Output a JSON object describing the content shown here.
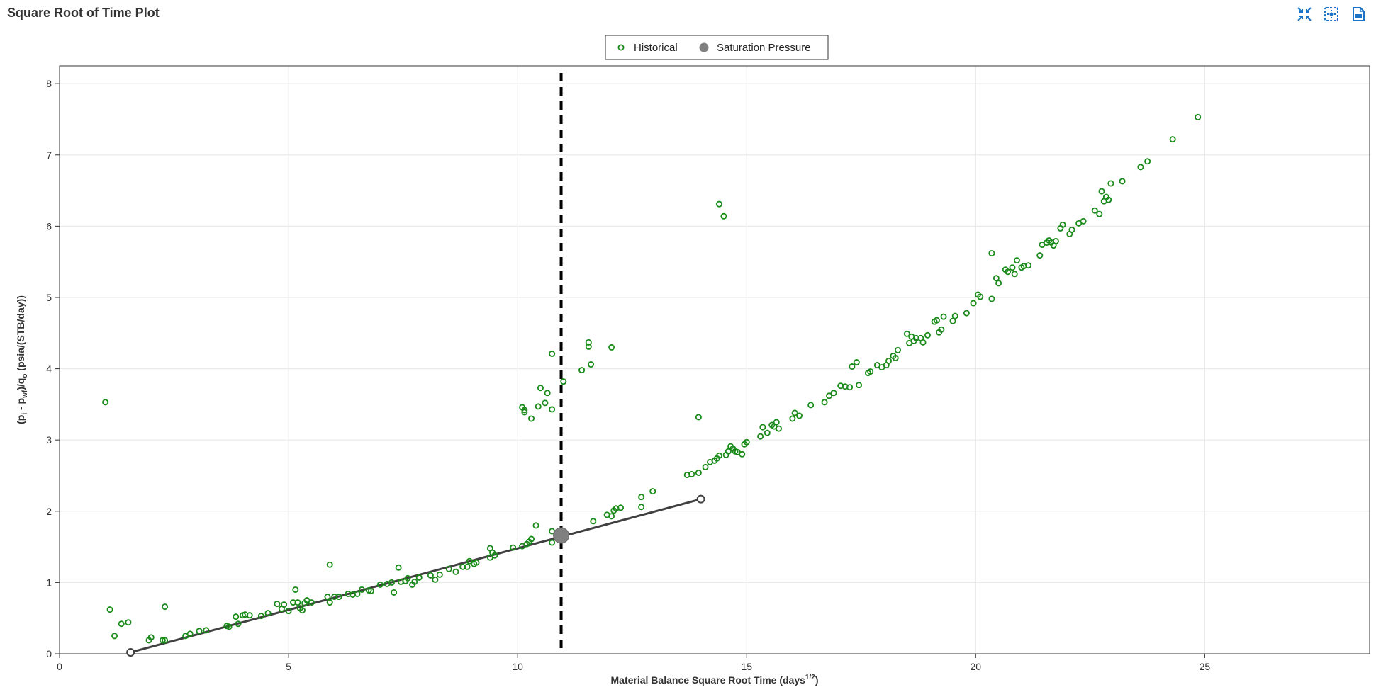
{
  "header": {
    "title": "Square Root of Time Plot",
    "icons": [
      "collapse-icon",
      "reset-zoom-icon",
      "export-icon"
    ]
  },
  "colors": {
    "historical": "#1a8a1a",
    "saturation": "#808080",
    "fit_line": "#404040",
    "dashed_line": "#000000",
    "grid": "#e6e6e6"
  },
  "chart_data": {
    "type": "scatter",
    "title": "Square Root of Time Plot",
    "xlabel_parts": [
      "Material Balance Square Root Time (days",
      "1/2",
      ")"
    ],
    "ylabel_parts": [
      "(p",
      "i",
      " - p",
      "wf",
      ")/q",
      "o",
      " (psia/(STB/day))"
    ],
    "xlim": [
      0,
      28.6
    ],
    "ylim": [
      0,
      8.25
    ],
    "xticks": [
      0,
      5,
      10,
      15,
      20,
      25
    ],
    "yticks": [
      0,
      1,
      2,
      3,
      4,
      5,
      6,
      7,
      8
    ],
    "grid": true,
    "legend_position": "top-center",
    "legend": [
      "Historical",
      "Saturation Pressure"
    ],
    "series": [
      {
        "name": "Historical",
        "marker": "open-circle",
        "points": [
          [
            1.0,
            3.53
          ],
          [
            1.1,
            0.62
          ],
          [
            1.2,
            0.25
          ],
          [
            1.35,
            0.42
          ],
          [
            1.5,
            0.44
          ],
          [
            1.95,
            0.19
          ],
          [
            2.0,
            0.23
          ],
          [
            2.25,
            0.19
          ],
          [
            2.3,
            0.66
          ],
          [
            2.3,
            0.19
          ],
          [
            2.75,
            0.25
          ],
          [
            2.85,
            0.28
          ],
          [
            3.05,
            0.32
          ],
          [
            3.2,
            0.33
          ],
          [
            3.65,
            0.39
          ],
          [
            3.7,
            0.38
          ],
          [
            3.85,
            0.52
          ],
          [
            3.9,
            0.42
          ],
          [
            4.0,
            0.54
          ],
          [
            4.05,
            0.55
          ],
          [
            4.15,
            0.54
          ],
          [
            4.4,
            0.53
          ],
          [
            4.55,
            0.57
          ],
          [
            4.75,
            0.7
          ],
          [
            4.85,
            0.63
          ],
          [
            4.9,
            0.69
          ],
          [
            5.0,
            0.6
          ],
          [
            5.1,
            0.72
          ],
          [
            5.15,
            0.9
          ],
          [
            5.2,
            0.72
          ],
          [
            5.25,
            0.64
          ],
          [
            5.3,
            0.61
          ],
          [
            5.35,
            0.71
          ],
          [
            5.4,
            0.75
          ],
          [
            5.5,
            0.72
          ],
          [
            5.85,
            0.8
          ],
          [
            5.9,
            1.25
          ],
          [
            5.9,
            0.72
          ],
          [
            6.0,
            0.8
          ],
          [
            6.1,
            0.8
          ],
          [
            6.3,
            0.84
          ],
          [
            6.4,
            0.83
          ],
          [
            6.5,
            0.84
          ],
          [
            6.6,
            0.9
          ],
          [
            6.75,
            0.89
          ],
          [
            6.8,
            0.88
          ],
          [
            7.0,
            0.97
          ],
          [
            7.15,
            0.98
          ],
          [
            7.25,
            1.0
          ],
          [
            7.3,
            0.86
          ],
          [
            7.4,
            1.21
          ],
          [
            7.45,
            1.01
          ],
          [
            7.55,
            1.02
          ],
          [
            7.6,
            1.06
          ],
          [
            7.7,
            0.97
          ],
          [
            7.75,
            1.01
          ],
          [
            7.85,
            1.07
          ],
          [
            8.1,
            1.1
          ],
          [
            8.2,
            1.04
          ],
          [
            8.3,
            1.11
          ],
          [
            8.5,
            1.19
          ],
          [
            8.65,
            1.15
          ],
          [
            8.8,
            1.22
          ],
          [
            8.9,
            1.22
          ],
          [
            8.95,
            1.3
          ],
          [
            9.05,
            1.26
          ],
          [
            9.1,
            1.28
          ],
          [
            9.4,
            1.35
          ],
          [
            9.4,
            1.48
          ],
          [
            9.45,
            1.42
          ],
          [
            9.5,
            1.38
          ],
          [
            9.9,
            1.49
          ],
          [
            10.1,
            1.51
          ],
          [
            10.2,
            1.54
          ],
          [
            10.25,
            1.57
          ],
          [
            10.3,
            1.61
          ],
          [
            10.4,
            1.8
          ],
          [
            10.1,
            3.46
          ],
          [
            10.15,
            3.39
          ],
          [
            10.15,
            3.42
          ],
          [
            10.3,
            3.3
          ],
          [
            10.45,
            3.47
          ],
          [
            10.5,
            3.73
          ],
          [
            10.6,
            3.52
          ],
          [
            10.65,
            3.66
          ],
          [
            10.75,
            3.43
          ],
          [
            10.75,
            4.21
          ],
          [
            10.75,
            1.56
          ],
          [
            10.75,
            1.72
          ],
          [
            11.0,
            3.82
          ],
          [
            11.4,
            3.98
          ],
          [
            11.55,
            4.37
          ],
          [
            11.55,
            4.31
          ],
          [
            11.6,
            4.06
          ],
          [
            11.65,
            1.86
          ],
          [
            12.05,
            4.3
          ],
          [
            11.95,
            1.95
          ],
          [
            12.05,
            1.93
          ],
          [
            12.1,
            2.01
          ],
          [
            12.15,
            2.04
          ],
          [
            12.25,
            2.05
          ],
          [
            12.7,
            2.06
          ],
          [
            12.7,
            2.2
          ],
          [
            12.95,
            2.28
          ],
          [
            13.7,
            2.51
          ],
          [
            13.8,
            2.52
          ],
          [
            13.95,
            2.54
          ],
          [
            13.95,
            3.32
          ],
          [
            14.1,
            2.62
          ],
          [
            14.2,
            2.69
          ],
          [
            14.3,
            2.71
          ],
          [
            14.35,
            2.74
          ],
          [
            14.4,
            2.78
          ],
          [
            14.4,
            6.31
          ],
          [
            14.5,
            6.14
          ],
          [
            14.55,
            2.79
          ],
          [
            14.6,
            2.84
          ],
          [
            14.65,
            2.91
          ],
          [
            14.7,
            2.88
          ],
          [
            14.75,
            2.84
          ],
          [
            14.8,
            2.83
          ],
          [
            14.9,
            2.8
          ],
          [
            14.95,
            2.94
          ],
          [
            15.0,
            2.97
          ],
          [
            15.3,
            3.05
          ],
          [
            15.35,
            3.18
          ],
          [
            15.45,
            3.1
          ],
          [
            15.55,
            3.21
          ],
          [
            15.6,
            3.19
          ],
          [
            15.65,
            3.25
          ],
          [
            15.7,
            3.16
          ],
          [
            16.0,
            3.3
          ],
          [
            16.05,
            3.38
          ],
          [
            16.15,
            3.34
          ],
          [
            16.4,
            3.49
          ],
          [
            16.7,
            3.53
          ],
          [
            16.8,
            3.62
          ],
          [
            16.9,
            3.66
          ],
          [
            17.05,
            3.76
          ],
          [
            17.15,
            3.75
          ],
          [
            17.25,
            3.74
          ],
          [
            17.3,
            4.03
          ],
          [
            17.4,
            4.09
          ],
          [
            17.45,
            3.77
          ],
          [
            17.65,
            3.94
          ],
          [
            17.7,
            3.96
          ],
          [
            17.85,
            4.05
          ],
          [
            17.95,
            4.02
          ],
          [
            18.05,
            4.05
          ],
          [
            18.1,
            4.11
          ],
          [
            18.2,
            4.18
          ],
          [
            18.25,
            4.15
          ],
          [
            18.3,
            4.26
          ],
          [
            18.5,
            4.49
          ],
          [
            18.55,
            4.36
          ],
          [
            18.6,
            4.45
          ],
          [
            18.65,
            4.39
          ],
          [
            18.7,
            4.43
          ],
          [
            18.8,
            4.43
          ],
          [
            18.85,
            4.37
          ],
          [
            18.95,
            4.47
          ],
          [
            19.1,
            4.66
          ],
          [
            19.15,
            4.68
          ],
          [
            19.2,
            4.51
          ],
          [
            19.25,
            4.55
          ],
          [
            19.3,
            4.73
          ],
          [
            19.5,
            4.67
          ],
          [
            19.55,
            4.74
          ],
          [
            19.8,
            4.78
          ],
          [
            19.95,
            4.92
          ],
          [
            20.05,
            5.04
          ],
          [
            20.1,
            5.01
          ],
          [
            20.35,
            4.98
          ],
          [
            20.35,
            5.62
          ],
          [
            20.45,
            5.27
          ],
          [
            20.5,
            5.2
          ],
          [
            20.65,
            5.39
          ],
          [
            20.7,
            5.36
          ],
          [
            20.8,
            5.42
          ],
          [
            20.85,
            5.33
          ],
          [
            20.9,
            5.52
          ],
          [
            21.0,
            5.42
          ],
          [
            21.05,
            5.44
          ],
          [
            21.15,
            5.45
          ],
          [
            21.4,
            5.59
          ],
          [
            21.45,
            5.74
          ],
          [
            21.55,
            5.77
          ],
          [
            21.6,
            5.8
          ],
          [
            21.65,
            5.77
          ],
          [
            21.7,
            5.73
          ],
          [
            21.75,
            5.79
          ],
          [
            21.85,
            5.97
          ],
          [
            21.9,
            6.02
          ],
          [
            22.05,
            5.89
          ],
          [
            22.1,
            5.95
          ],
          [
            22.25,
            6.04
          ],
          [
            22.35,
            6.07
          ],
          [
            22.6,
            6.22
          ],
          [
            22.7,
            6.17
          ],
          [
            22.75,
            6.49
          ],
          [
            22.8,
            6.35
          ],
          [
            22.85,
            6.41
          ],
          [
            22.9,
            6.37
          ],
          [
            22.95,
            6.6
          ],
          [
            23.2,
            6.63
          ],
          [
            23.6,
            6.83
          ],
          [
            23.75,
            6.91
          ],
          [
            24.3,
            7.22
          ],
          [
            24.85,
            7.53
          ]
        ]
      },
      {
        "name": "Saturation Pressure",
        "marker": "filled-circle",
        "points": [
          [
            10.95,
            1.66
          ]
        ]
      }
    ],
    "fit_line": {
      "start": [
        1.55,
        0.02
      ],
      "end": [
        14.0,
        2.17
      ],
      "end_markers": "open-circle"
    },
    "vertical_line": {
      "x": 10.95,
      "style": "dashed"
    }
  }
}
